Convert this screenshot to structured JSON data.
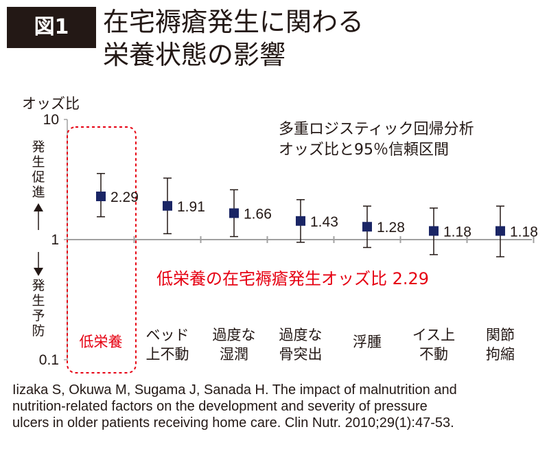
{
  "figure_label": "図1",
  "title_lines": [
    "在宅褥瘡発生に関わる",
    "栄養状態の影響"
  ],
  "colors": {
    "ink": "#231815",
    "marker": "#1a2565",
    "highlight": "#e60012",
    "axis": "#a0a0a0"
  },
  "chart_data": {
    "type": "forest",
    "ylabel": "オッズ比",
    "yscale": "log",
    "ylim": [
      0.1,
      10
    ],
    "yticks": [
      {
        "value": 10,
        "label": "10"
      },
      {
        "value": 1,
        "label": "1"
      },
      {
        "value": 0.1,
        "label": "0.1"
      }
    ],
    "legend_note": [
      "多重ロジスティック回帰分析",
      "オッズ比と95％信頼区間"
    ],
    "direction_up": "発生促進",
    "direction_down": "発生予防",
    "annotation": "低栄養の在宅褥瘡発生オッズ比 2.29",
    "points": [
      {
        "category": [
          "低栄養"
        ],
        "or": 2.29,
        "ci": [
          1.55,
          3.55
        ],
        "label": "2.29",
        "highlight": true
      },
      {
        "category": [
          "ベッド",
          "上不動"
        ],
        "or": 1.91,
        "ci": [
          1.12,
          3.25
        ],
        "label": "1.91"
      },
      {
        "category": [
          "過度な",
          "湿潤"
        ],
        "or": 1.66,
        "ci": [
          1.06,
          2.6
        ],
        "label": "1.66"
      },
      {
        "category": [
          "過度な",
          "骨突出"
        ],
        "or": 1.43,
        "ci": [
          0.95,
          2.15
        ],
        "label": "1.43"
      },
      {
        "category": [
          "浮腫"
        ],
        "or": 1.28,
        "ci": [
          0.86,
          1.9
        ],
        "label": "1.28"
      },
      {
        "category": [
          "イス上",
          "不動"
        ],
        "or": 1.18,
        "ci": [
          0.75,
          1.83
        ],
        "label": "1.18"
      },
      {
        "category": [
          "関節",
          "拘縮"
        ],
        "or": 1.18,
        "ci": [
          0.72,
          1.9
        ],
        "label": "1.18"
      }
    ]
  },
  "citation_lines": [
    "Iizaka S, Okuwa M, Sugama J, Sanada H. The impact of malnutrition and",
    "nutrition-related factors on the development and severity of pressure",
    "ulcers in older patients receiving home care. Clin Nutr. 2010;29(1):47-53."
  ]
}
